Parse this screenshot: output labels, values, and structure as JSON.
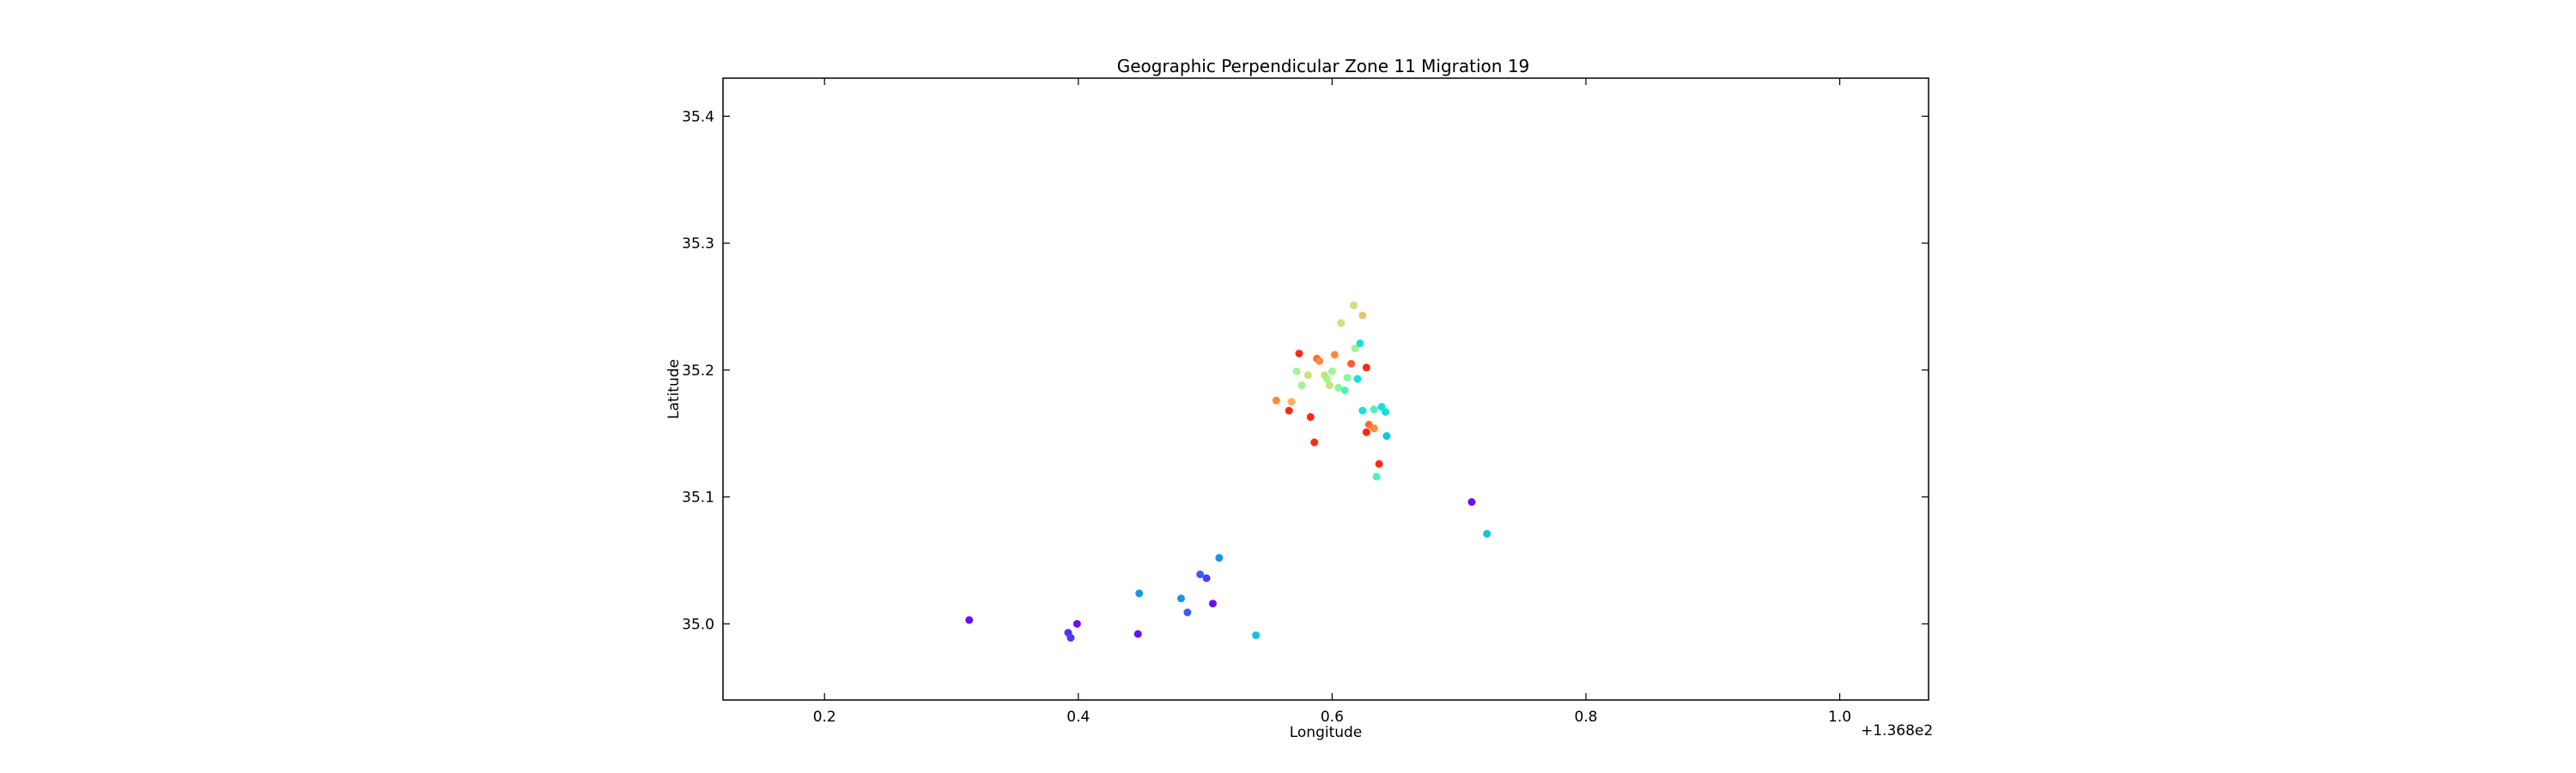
{
  "chart_data": {
    "type": "scatter",
    "title": "Geographic Perpendicular Zone 11 Migration 19",
    "xlabel": "Longitude",
    "ylabel": "Latitude",
    "x_offset_label": "+1.368e2",
    "xlim": [
      0.12,
      1.07
    ],
    "ylim": [
      34.94,
      35.43
    ],
    "xticks": [
      0.2,
      0.4,
      0.6,
      0.8,
      1.0
    ],
    "xtick_labels": [
      "0.2",
      "0.4",
      "0.6",
      "0.8",
      "1.0"
    ],
    "yticks": [
      35.0,
      35.1,
      35.2,
      35.3,
      35.4
    ],
    "ytick_labels": [
      "35.0",
      "35.1",
      "35.2",
      "35.3",
      "35.4"
    ],
    "grid": false,
    "colormap": "rainbow",
    "points": [
      {
        "x": 0.314,
        "y": 35.003,
        "color": "#6a11f0"
      },
      {
        "x": 0.392,
        "y": 34.993,
        "color": "#5a2cf5"
      },
      {
        "x": 0.394,
        "y": 34.989,
        "color": "#4b3cf7"
      },
      {
        "x": 0.399,
        "y": 35.0,
        "color": "#6a11f0"
      },
      {
        "x": 0.447,
        "y": 34.992,
        "color": "#6a11f0"
      },
      {
        "x": 0.448,
        "y": 35.024,
        "color": "#1a96e8"
      },
      {
        "x": 0.481,
        "y": 35.02,
        "color": "#1a96e8"
      },
      {
        "x": 0.486,
        "y": 35.009,
        "color": "#3b5cf4"
      },
      {
        "x": 0.496,
        "y": 35.039,
        "color": "#3b5cf4"
      },
      {
        "x": 0.501,
        "y": 35.036,
        "color": "#4b3cf7"
      },
      {
        "x": 0.506,
        "y": 35.016,
        "color": "#6a11f0"
      },
      {
        "x": 0.511,
        "y": 35.052,
        "color": "#1a96e8"
      },
      {
        "x": 0.54,
        "y": 34.991,
        "color": "#12c3e0"
      },
      {
        "x": 0.71,
        "y": 35.096,
        "color": "#6a11f0"
      },
      {
        "x": 0.722,
        "y": 35.071,
        "color": "#12c3e0"
      },
      {
        "x": 0.556,
        "y": 35.176,
        "color": "#ff8a40"
      },
      {
        "x": 0.566,
        "y": 35.168,
        "color": "#ff2a14"
      },
      {
        "x": 0.568,
        "y": 35.175,
        "color": "#ffb35a"
      },
      {
        "x": 0.572,
        "y": 35.199,
        "color": "#a0f590"
      },
      {
        "x": 0.574,
        "y": 35.213,
        "color": "#ff2a14"
      },
      {
        "x": 0.576,
        "y": 35.188,
        "color": "#a0f590"
      },
      {
        "x": 0.581,
        "y": 35.196,
        "color": "#c8e37a"
      },
      {
        "x": 0.583,
        "y": 35.163,
        "color": "#ff2a14"
      },
      {
        "x": 0.586,
        "y": 35.143,
        "color": "#ff2a14"
      },
      {
        "x": 0.588,
        "y": 35.209,
        "color": "#ff6a32"
      },
      {
        "x": 0.59,
        "y": 35.207,
        "color": "#ff8a40"
      },
      {
        "x": 0.594,
        "y": 35.196,
        "color": "#c8e37a"
      },
      {
        "x": 0.596,
        "y": 35.193,
        "color": "#a0f590"
      },
      {
        "x": 0.598,
        "y": 35.188,
        "color": "#c8e37a"
      },
      {
        "x": 0.6,
        "y": 35.199,
        "color": "#a0f590"
      },
      {
        "x": 0.602,
        "y": 35.212,
        "color": "#ff8a40"
      },
      {
        "x": 0.605,
        "y": 35.186,
        "color": "#88f7a0"
      },
      {
        "x": 0.607,
        "y": 35.237,
        "color": "#c8e37a"
      },
      {
        "x": 0.61,
        "y": 35.184,
        "color": "#4ff0c0"
      },
      {
        "x": 0.612,
        "y": 35.194,
        "color": "#88f7a0"
      },
      {
        "x": 0.615,
        "y": 35.205,
        "color": "#ff5a28"
      },
      {
        "x": 0.617,
        "y": 35.251,
        "color": "#c8e37a"
      },
      {
        "x": 0.618,
        "y": 35.217,
        "color": "#a0f590"
      },
      {
        "x": 0.62,
        "y": 35.193,
        "color": "#1adfd8"
      },
      {
        "x": 0.622,
        "y": 35.221,
        "color": "#1adfd8"
      },
      {
        "x": 0.624,
        "y": 35.243,
        "color": "#e8c86a"
      },
      {
        "x": 0.624,
        "y": 35.168,
        "color": "#1adfd8"
      },
      {
        "x": 0.627,
        "y": 35.202,
        "color": "#ff2a14"
      },
      {
        "x": 0.627,
        "y": 35.151,
        "color": "#ff2a14"
      },
      {
        "x": 0.629,
        "y": 35.157,
        "color": "#ff6a32"
      },
      {
        "x": 0.633,
        "y": 35.154,
        "color": "#ff8a40"
      },
      {
        "x": 0.633,
        "y": 35.169,
        "color": "#4ff0c0"
      },
      {
        "x": 0.635,
        "y": 35.116,
        "color": "#4ff0c0"
      },
      {
        "x": 0.637,
        "y": 35.126,
        "color": "#ff2a14"
      },
      {
        "x": 0.639,
        "y": 35.171,
        "color": "#1adfd8"
      },
      {
        "x": 0.642,
        "y": 35.167,
        "color": "#1adfd8"
      },
      {
        "x": 0.643,
        "y": 35.148,
        "color": "#12c3e0"
      }
    ]
  }
}
